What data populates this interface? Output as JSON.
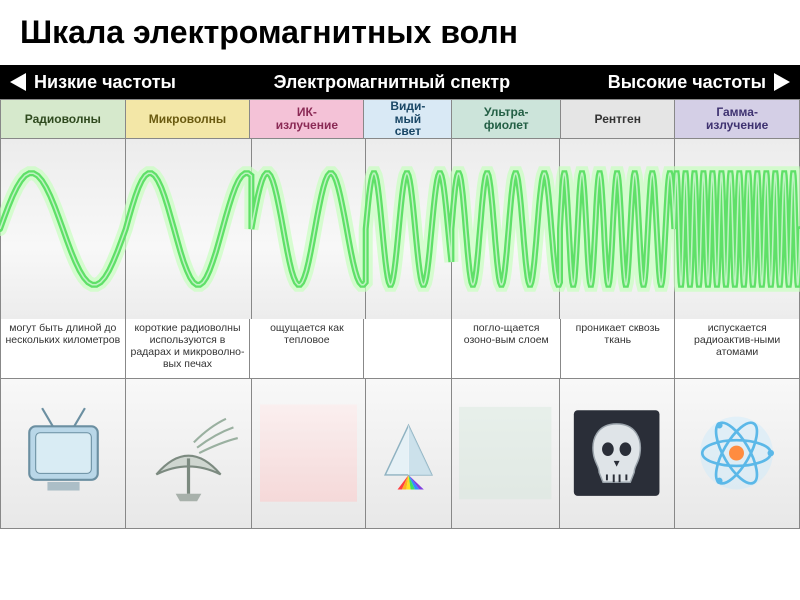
{
  "title": "Шкала электромагнитных волн",
  "header": {
    "left": "Низкие частоты",
    "center": "Электромагнитный спектр",
    "right": "Высокие частоты"
  },
  "bands": [
    {
      "label": "Радиоволны",
      "bg": "#d6e9cc",
      "fg": "#2f4a1f"
    },
    {
      "label": "Микроволны",
      "bg": "#f3e7a7",
      "fg": "#6a5a10"
    },
    {
      "label": "ИК-\nизлучение",
      "bg": "#f4c2d7",
      "fg": "#8a2a55"
    },
    {
      "label": "Види-\nмый\nсвет",
      "bg": "#d9e9f5",
      "fg": "#1a4766"
    },
    {
      "label": "Ультра-\nфиолет",
      "bg": "#cce4da",
      "fg": "#235f45"
    },
    {
      "label": "Рентген",
      "bg": "#e5e5e5",
      "fg": "#333333"
    },
    {
      "label": "Гамма-\nизлучение",
      "bg": "#d4cfe6",
      "fg": "#3e3270"
    }
  ],
  "flex_weights": [
    1.1,
    1.1,
    1.0,
    0.75,
    0.95,
    1.0,
    1.1
  ],
  "descriptions": [
    "могут быть длиной до нескольких километров",
    "короткие радиоволны используются в радарах и микроволно-вых печах",
    "ощущается как тепловое",
    "",
    "погло-щается озоно-вым слоем",
    "проникает сквозь ткань",
    "испускается радиоактив-ными атомами"
  ],
  "wave": {
    "stroke": "#5fe068",
    "glow": "#c7ffbf",
    "stroke_width": 6,
    "amplitude": 56,
    "midline": 90,
    "frequency_ramp": [
      1,
      1.3,
      1.8,
      2.6,
      3.8,
      6.5,
      14
    ],
    "highlight": "#ffffff"
  },
  "icons": {
    "tv": {
      "body": "#b9d7e8",
      "screen": "#d9ecf4",
      "edge": "#6b8fa1"
    },
    "radar": {
      "dish": "#cfd6d0",
      "edge": "#7c8a80",
      "beams": "#9ab0a0"
    },
    "ir": {
      "fade_top": "#ffe9e9",
      "fade_bot": "#ffc7c7"
    },
    "prism": {
      "face1": "#e6f1f6",
      "face2": "#c5dde8",
      "edge": "#8fb2c1",
      "rainbow": [
        "#ff4040",
        "#ffb020",
        "#ffe020",
        "#40e060",
        "#3090ff",
        "#8040e0"
      ]
    },
    "uv": {
      "bg": "#cde6d8"
    },
    "xray": {
      "bg": "#2a2e38",
      "skull": "#dfe4e8",
      "outline": "#9aa3ab"
    },
    "atom": {
      "ring": "#5bb8e8",
      "nucleus": "#ff8c40",
      "glow": "#bfe8ff"
    }
  },
  "diagram_bg": "#ffffff",
  "title_color": "#000000"
}
